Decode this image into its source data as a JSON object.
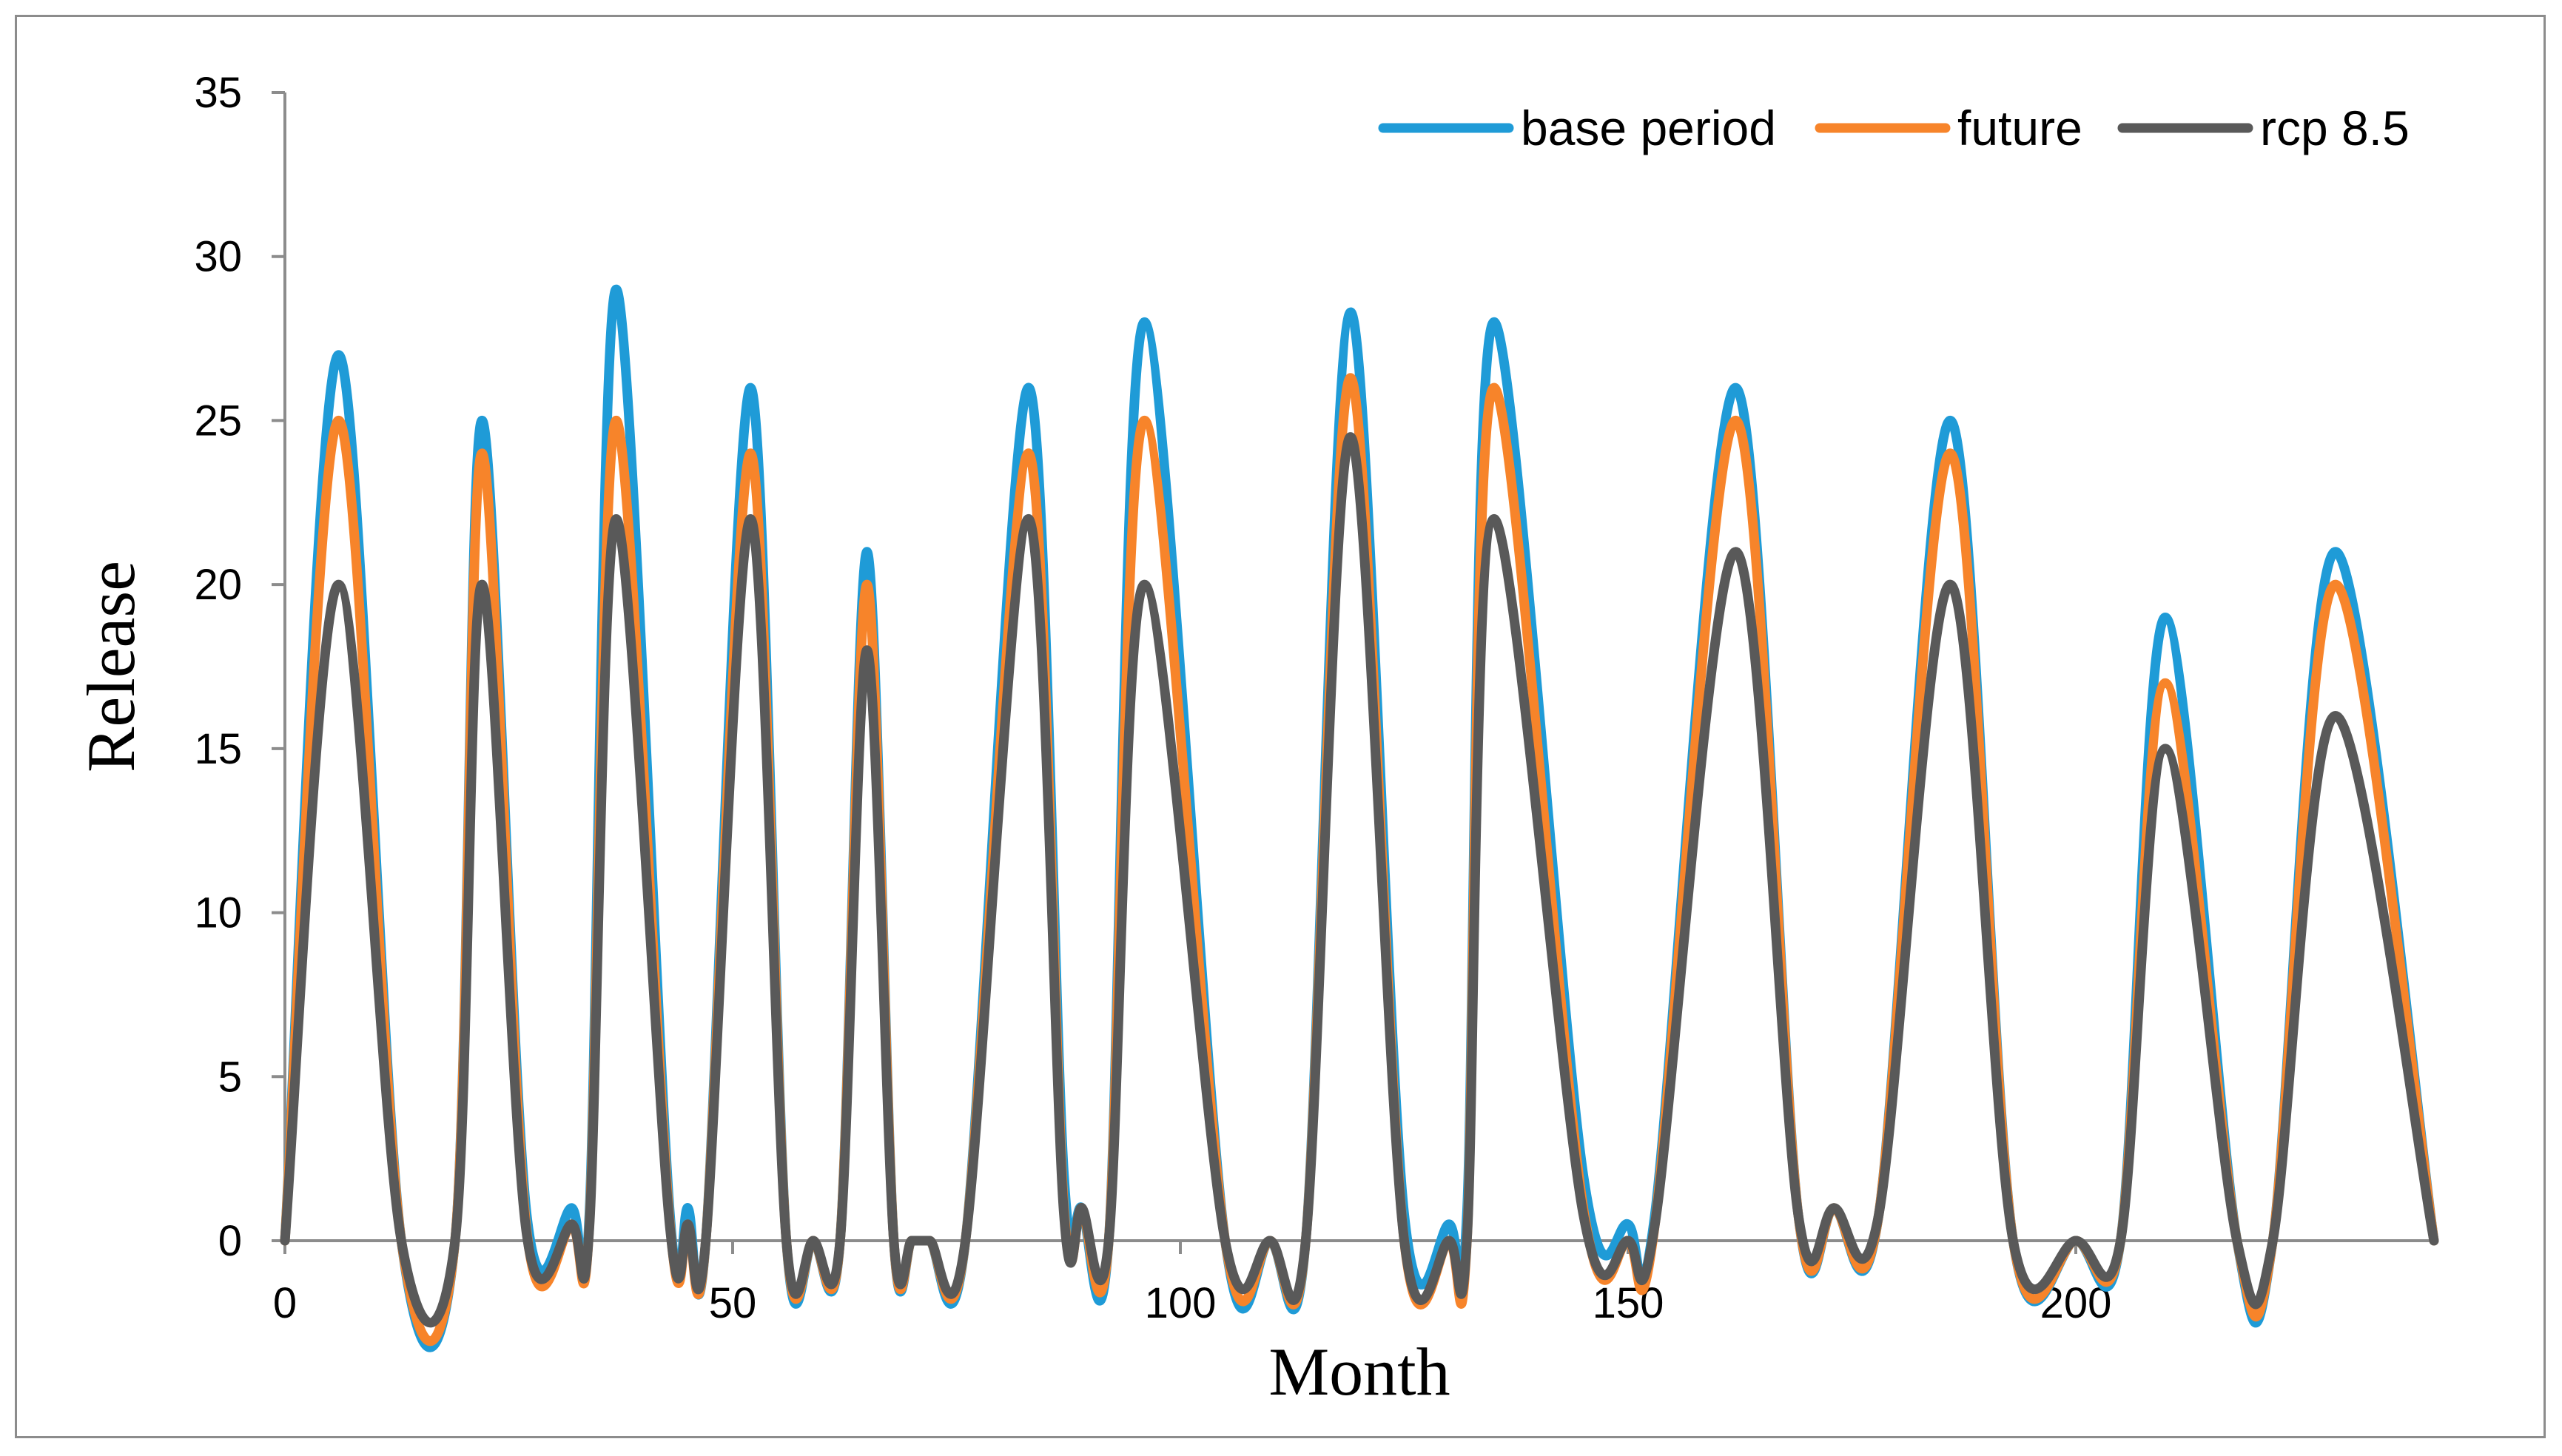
{
  "chart_data": {
    "type": "line",
    "title": "",
    "xlabel": "Month",
    "ylabel": "Release",
    "xlim": [
      0,
      240
    ],
    "ylim": [
      0,
      35
    ],
    "x_ticks": [
      0,
      50,
      100,
      150,
      200
    ],
    "y_ticks": [
      0,
      5,
      10,
      15,
      20,
      25,
      30,
      35
    ],
    "grid": false,
    "legend_position": "top-right",
    "series": [
      {
        "name": "base period",
        "color": "#1f9bd7",
        "points": [
          [
            0,
            0
          ],
          [
            6,
            27
          ],
          [
            13,
            0
          ],
          [
            19,
            0
          ],
          [
            22,
            25
          ],
          [
            27,
            0.8
          ],
          [
            32,
            1
          ],
          [
            34,
            0.8
          ],
          [
            37,
            29
          ],
          [
            43,
            0.8
          ],
          [
            45,
            1
          ],
          [
            47,
            0
          ],
          [
            52,
            26
          ],
          [
            56,
            0
          ],
          [
            59,
            0
          ],
          [
            62,
            0
          ],
          [
            65,
            21
          ],
          [
            68,
            0
          ],
          [
            70,
            0
          ],
          [
            72,
            0
          ],
          [
            76,
            0
          ],
          [
            83,
            26
          ],
          [
            87,
            2
          ],
          [
            89,
            1
          ],
          [
            92,
            0
          ],
          [
            96,
            28
          ],
          [
            105,
            0
          ],
          [
            110,
            0
          ],
          [
            114,
            0
          ],
          [
            119,
            28.3
          ],
          [
            125,
            0.8
          ],
          [
            130,
            0.5
          ],
          [
            132,
            0.8
          ],
          [
            135,
            28
          ],
          [
            145,
            2
          ],
          [
            150,
            0.5
          ],
          [
            153,
            0.8
          ],
          [
            162,
            26
          ],
          [
            169,
            0.8
          ],
          [
            173,
            1
          ],
          [
            178,
            0.8
          ],
          [
            186,
            25
          ],
          [
            193,
            0
          ],
          [
            200,
            0
          ],
          [
            205,
            0
          ],
          [
            210,
            19
          ],
          [
            218,
            0
          ],
          [
            222,
            0
          ],
          [
            229,
            21
          ],
          [
            240,
            0
          ]
        ]
      },
      {
        "name": "future",
        "color": "#f7842a",
        "points": [
          [
            0,
            0
          ],
          [
            6,
            25
          ],
          [
            13,
            0
          ],
          [
            19,
            0
          ],
          [
            22,
            24
          ],
          [
            27,
            0.3
          ],
          [
            32,
            0.5
          ],
          [
            34,
            0.5
          ],
          [
            37,
            25
          ],
          [
            43,
            0.5
          ],
          [
            45,
            0.5
          ],
          [
            47,
            0
          ],
          [
            52,
            24
          ],
          [
            56,
            0
          ],
          [
            59,
            0
          ],
          [
            62,
            0
          ],
          [
            65,
            20
          ],
          [
            68,
            0
          ],
          [
            70,
            0
          ],
          [
            72,
            0
          ],
          [
            76,
            0
          ],
          [
            83,
            24
          ],
          [
            87,
            1
          ],
          [
            89,
            1
          ],
          [
            92,
            0
          ],
          [
            96,
            25
          ],
          [
            105,
            0
          ],
          [
            110,
            0
          ],
          [
            114,
            0
          ],
          [
            119,
            26.3
          ],
          [
            125,
            0
          ],
          [
            130,
            0
          ],
          [
            132,
            0
          ],
          [
            135,
            26
          ],
          [
            145,
            1
          ],
          [
            150,
            0
          ],
          [
            153,
            0.5
          ],
          [
            162,
            25
          ],
          [
            169,
            0.8
          ],
          [
            173,
            1
          ],
          [
            178,
            0.8
          ],
          [
            186,
            24
          ],
          [
            193,
            0
          ],
          [
            200,
            0
          ],
          [
            205,
            0
          ],
          [
            210,
            17
          ],
          [
            218,
            0
          ],
          [
            222,
            0
          ],
          [
            229,
            20
          ],
          [
            240,
            0
          ]
        ]
      },
      {
        "name": "rcp 8.5",
        "color": "#595959",
        "points": [
          [
            0,
            0
          ],
          [
            6,
            20
          ],
          [
            13,
            0
          ],
          [
            19,
            0
          ],
          [
            22,
            20
          ],
          [
            27,
            0.2
          ],
          [
            32,
            0.5
          ],
          [
            34,
            0.4
          ],
          [
            37,
            22
          ],
          [
            43,
            0.4
          ],
          [
            45,
            0.5
          ],
          [
            47,
            0
          ],
          [
            52,
            22
          ],
          [
            56,
            0
          ],
          [
            59,
            0
          ],
          [
            62,
            0
          ],
          [
            65,
            18
          ],
          [
            68,
            0
          ],
          [
            70,
            0
          ],
          [
            72,
            0
          ],
          [
            76,
            0
          ],
          [
            83,
            22
          ],
          [
            87,
            0.8
          ],
          [
            89,
            1
          ],
          [
            92,
            0
          ],
          [
            96,
            20
          ],
          [
            105,
            0
          ],
          [
            110,
            0
          ],
          [
            114,
            0
          ],
          [
            119,
            24.5
          ],
          [
            125,
            0
          ],
          [
            130,
            0
          ],
          [
            132,
            0
          ],
          [
            135,
            22
          ],
          [
            145,
            0.8
          ],
          [
            150,
            0
          ],
          [
            153,
            0.5
          ],
          [
            162,
            21
          ],
          [
            169,
            0.8
          ],
          [
            173,
            1
          ],
          [
            178,
            0.8
          ],
          [
            186,
            20
          ],
          [
            193,
            0
          ],
          [
            200,
            0
          ],
          [
            205,
            0
          ],
          [
            210,
            15
          ],
          [
            218,
            0
          ],
          [
            222,
            0
          ],
          [
            229,
            16
          ],
          [
            240,
            0
          ]
        ]
      }
    ]
  }
}
